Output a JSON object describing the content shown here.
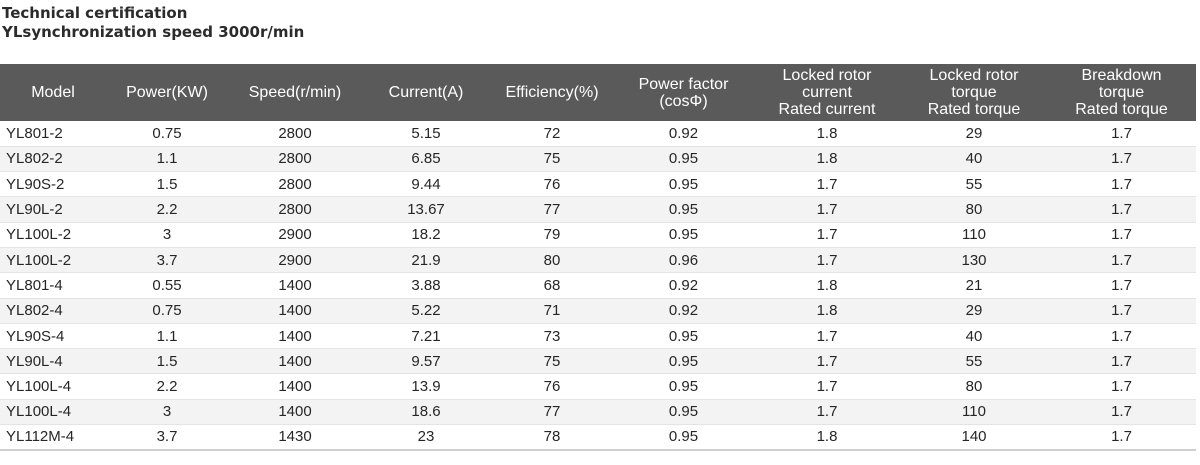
{
  "heading": {
    "line1": "Technical certification",
    "line2": "YLsynchronization speed 3000r/min"
  },
  "table": {
    "columns": [
      {
        "key": "model",
        "lines": [
          "Model"
        ]
      },
      {
        "key": "power",
        "lines": [
          "Power(KW)"
        ]
      },
      {
        "key": "speed",
        "lines": [
          "Speed(r/min)"
        ]
      },
      {
        "key": "current",
        "lines": [
          "Current(A)"
        ]
      },
      {
        "key": "efficiency",
        "lines": [
          "Efficiency(%)"
        ]
      },
      {
        "key": "power_factor",
        "lines": [
          "Power factor",
          "(cosΦ)"
        ]
      },
      {
        "key": "locked_rotor_current",
        "lines": [
          "Locked rotor",
          "current",
          "Rated current"
        ]
      },
      {
        "key": "locked_rotor_torque",
        "lines": [
          "Locked rotor",
          "torque",
          "Rated torque"
        ]
      },
      {
        "key": "breakdown_torque",
        "lines": [
          "Breakdown",
          "torque",
          "Rated torque"
        ]
      }
    ],
    "rows": [
      [
        "YL801-2",
        "0.75",
        "2800",
        "5.15",
        "72",
        "0.92",
        "1.8",
        "29",
        "1.7"
      ],
      [
        "YL802-2",
        "1.1",
        "2800",
        "6.85",
        "75",
        "0.95",
        "1.8",
        "40",
        "1.7"
      ],
      [
        "YL90S-2",
        "1.5",
        "2800",
        "9.44",
        "76",
        "0.95",
        "1.7",
        "55",
        "1.7"
      ],
      [
        "YL90L-2",
        "2.2",
        "2800",
        "13.67",
        "77",
        "0.95",
        "1.7",
        "80",
        "1.7"
      ],
      [
        "YL100L-2",
        "3",
        "2900",
        "18.2",
        "79",
        "0.95",
        "1.7",
        "110",
        "1.7"
      ],
      [
        "YL100L-2",
        "3.7",
        "2900",
        "21.9",
        "80",
        "0.96",
        "1.7",
        "130",
        "1.7"
      ],
      [
        "YL801-4",
        "0.55",
        "1400",
        "3.88",
        "68",
        "0.92",
        "1.8",
        "21",
        "1.7"
      ],
      [
        "YL802-4",
        "0.75",
        "1400",
        "5.22",
        "71",
        "0.92",
        "1.8",
        "29",
        "1.7"
      ],
      [
        "YL90S-4",
        "1.1",
        "1400",
        "7.21",
        "73",
        "0.95",
        "1.7",
        "40",
        "1.7"
      ],
      [
        "YL90L-4",
        "1.5",
        "1400",
        "9.57",
        "75",
        "0.95",
        "1.7",
        "55",
        "1.7"
      ],
      [
        "YL100L-4",
        "2.2",
        "1400",
        "13.9",
        "76",
        "0.95",
        "1.7",
        "80",
        "1.7"
      ],
      [
        "YL100L-4",
        "3",
        "1400",
        "18.6",
        "77",
        "0.95",
        "1.7",
        "110",
        "1.7"
      ],
      [
        "YL112M-4",
        "3.7",
        "1430",
        "23",
        "78",
        "0.95",
        "1.8",
        "140",
        "1.7"
      ]
    ]
  },
  "colors": {
    "header_background": "#5a5a5a",
    "header_text": "#ffffff",
    "stripe": "#f3f3f3"
  }
}
